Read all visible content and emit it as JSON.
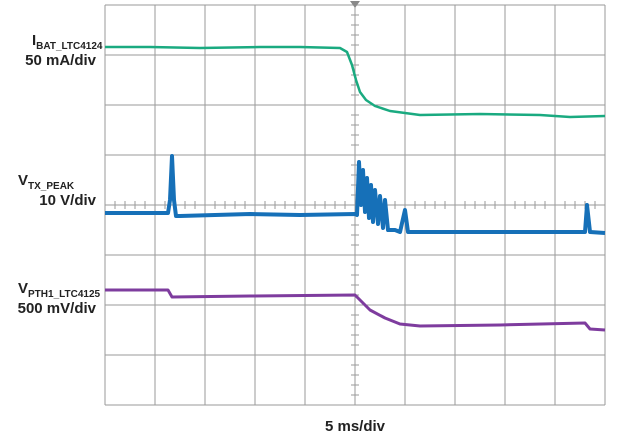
{
  "traces": [
    {
      "symbol": "I",
      "subscript": "BAT_LTC4124",
      "scale": "50 mA/div"
    },
    {
      "symbol": "V",
      "subscript": "TX_PEAK",
      "scale": "10 V/div"
    },
    {
      "symbol": "V",
      "subscript": "PTH1_LTC4125",
      "scale": "500 mV/div"
    }
  ],
  "timebase": "5 ms/div"
}
